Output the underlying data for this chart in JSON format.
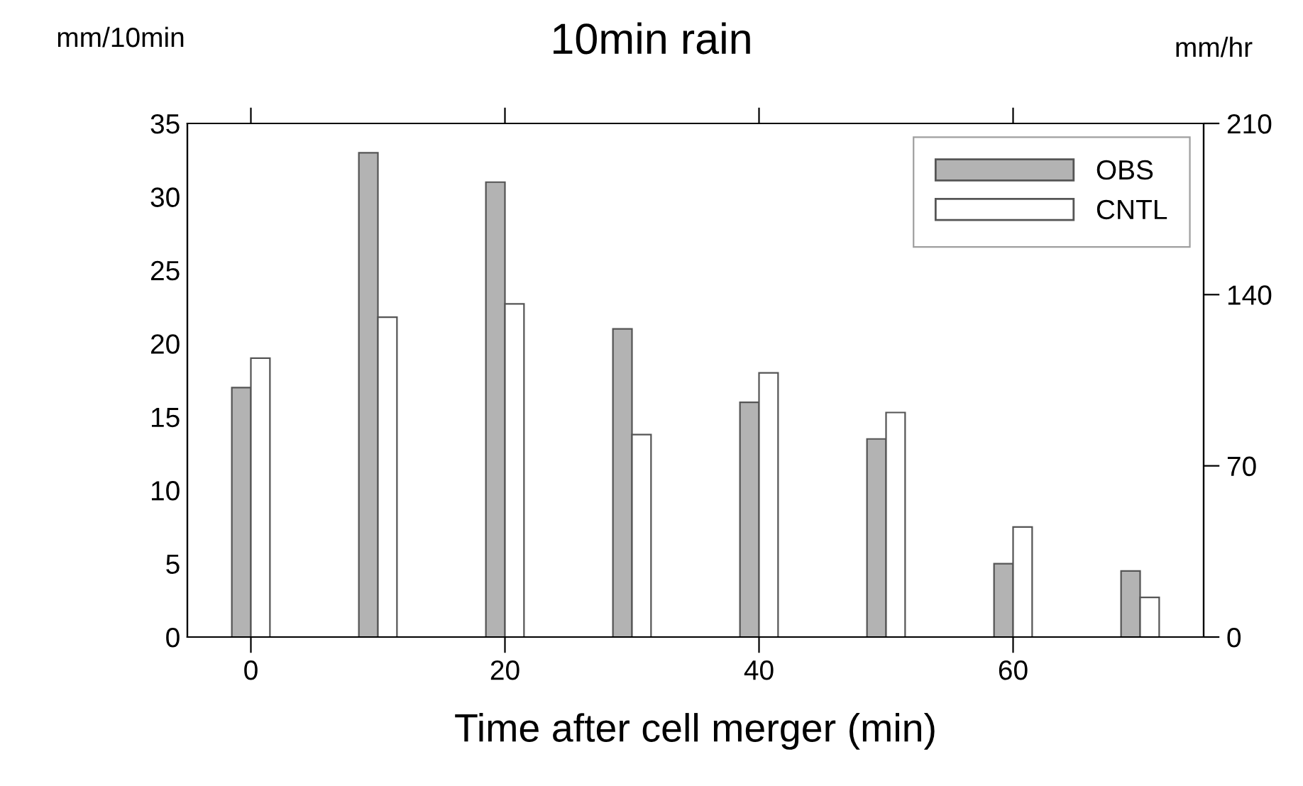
{
  "chart_data": {
    "type": "bar",
    "title": "10min rain",
    "xlabel": "Time after cell merger (min)",
    "ylabel": "mm/10min",
    "y2label": "mm/hr",
    "x": [
      0,
      10,
      20,
      30,
      40,
      50,
      60,
      70
    ],
    "series": [
      {
        "name": "OBS",
        "color": "#b3b3b3",
        "values": [
          17,
          33,
          31,
          21,
          16,
          13.5,
          5,
          4.5
        ]
      },
      {
        "name": "CNTL",
        "color": "#ffffff",
        "values": [
          19,
          21.8,
          22.7,
          13.8,
          18,
          15.3,
          7.5,
          2.7
        ]
      }
    ],
    "xlim": [
      -5,
      75
    ],
    "xticks": [
      0,
      20,
      40,
      60
    ],
    "ylim": [
      0,
      35
    ],
    "yticks": [
      0,
      5,
      10,
      15,
      20,
      25,
      30,
      35
    ],
    "y2lim": [
      0,
      210
    ],
    "y2ticks": [
      0,
      70,
      140,
      210
    ],
    "legend": "top right",
    "grid": false
  }
}
